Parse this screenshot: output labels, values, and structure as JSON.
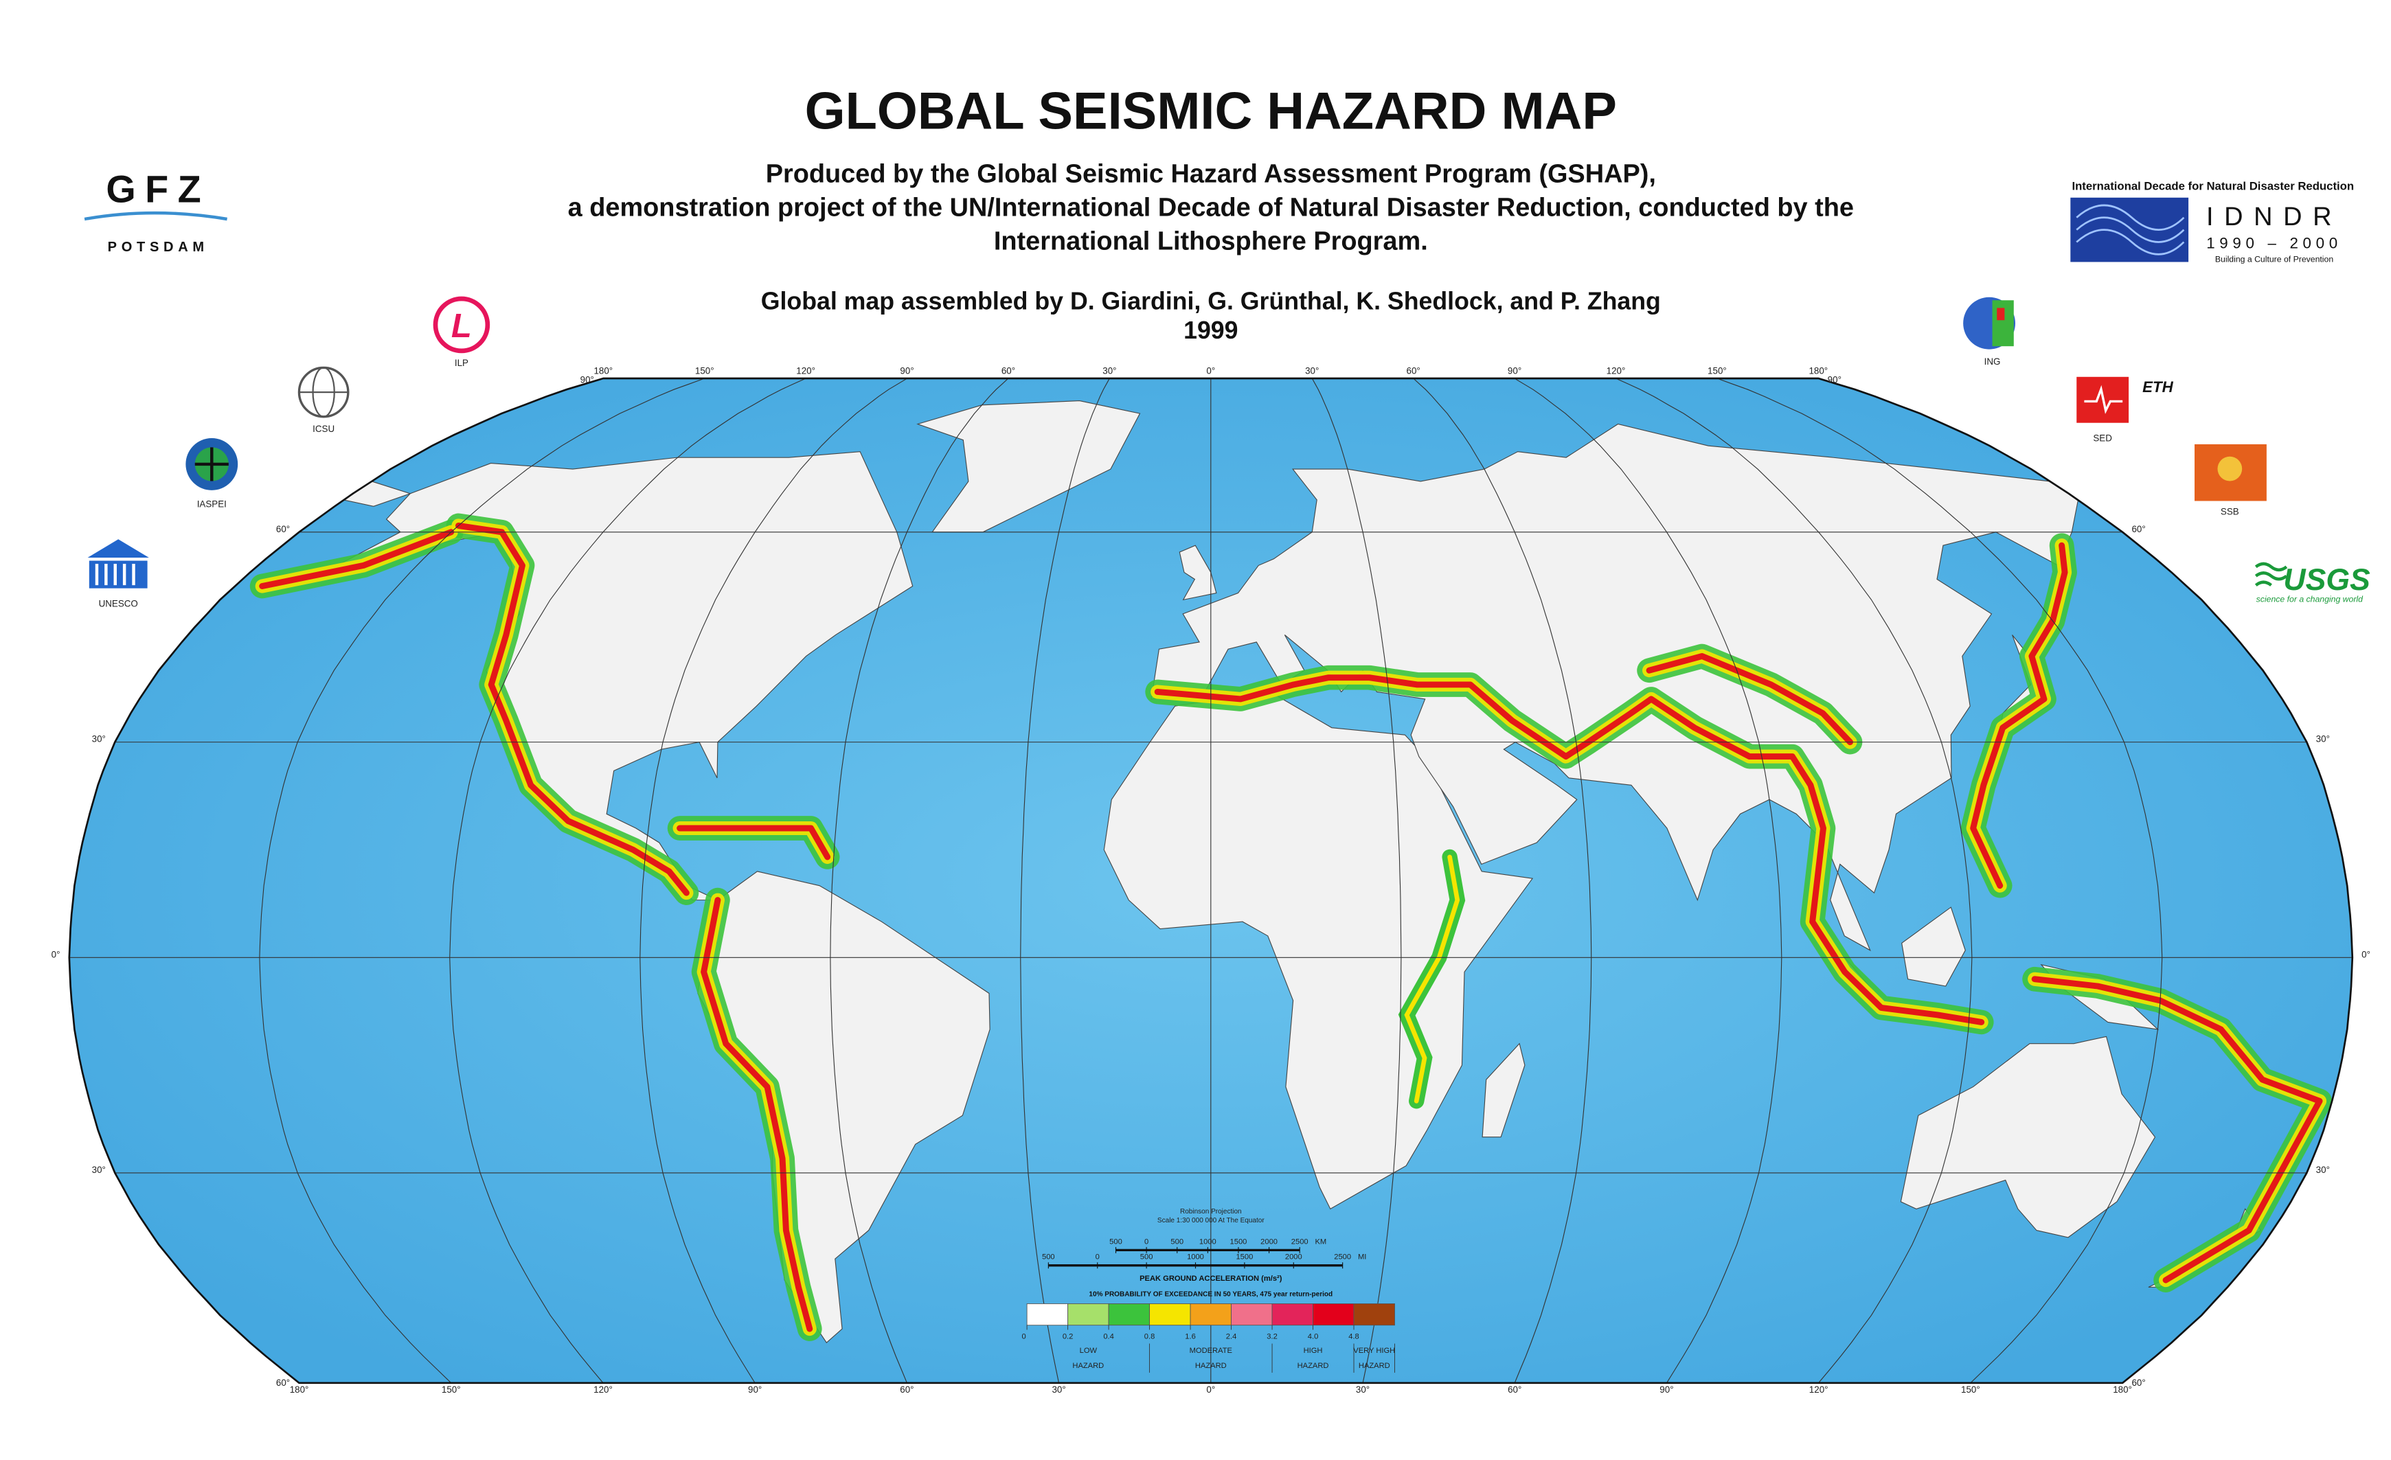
{
  "header": {
    "title": "GLOBAL SEISMIC HAZARD MAP",
    "subtitle_lines": [
      "Produced by the Global Seismic Hazard Assessment Program (GSHAP),",
      "a demonstration project of the UN/International Decade of Natural Disaster Reduction, conducted by the",
      "International Lithosphere Program."
    ],
    "authors": "Global map assembled by D. Giardini, G. Grünthal, K. Shedlock, and  P. Zhang",
    "year": "1999"
  },
  "logos": {
    "gfz": "GFZ",
    "gfz_sub": "POTSDAM",
    "ilp": "ILP",
    "icsu": "ICSU",
    "iaspei": "IASPEI",
    "unesco": "UNESCO",
    "ing": "ING",
    "eth": "ETH",
    "sed": "SED",
    "ssb": "SSB",
    "usgs": "USGS",
    "usgs_tagline": "science for a changing world",
    "idndr_heading": "International Decade for Natural Disaster Reduction",
    "idndr": "IDNDR",
    "idndr_years": "1990 – 2000",
    "idndr_motto": "Building a Culture of Prevention"
  },
  "map": {
    "longitude_labels": [
      "180°",
      "150°",
      "120°",
      "90°",
      "60°",
      "30°",
      "0°",
      "30°",
      "60°",
      "90°",
      "120°",
      "150°",
      "180°"
    ],
    "latitude_labels": [
      "90°",
      "60°",
      "30°",
      "0°",
      "30°",
      "60°"
    ],
    "projection_note": "Robinson Projection",
    "scale_note": "Scale 1:30 000 000 At The Equator",
    "scale_bar": {
      "km": [
        500,
        0,
        500,
        1000,
        1500,
        2000,
        2500
      ],
      "km_unit": "KM",
      "mi": [
        500,
        0,
        500,
        1000,
        1500,
        2000,
        2500
      ],
      "mi_unit": "MI"
    }
  },
  "legend": {
    "title": "PEAK GROUND ACCELERATION (m/s²)",
    "subtitle": "10% PROBABILITY OF EXCEEDANCE IN 50 YEARS, 475 year return-period",
    "colors": [
      "#ffffff",
      "#a6e06a",
      "#3cc33c",
      "#f5e500",
      "#f3a11a",
      "#f0708a",
      "#e3245a",
      "#e3001b",
      "#a0410d"
    ],
    "ticks": [
      0,
      0.2,
      0.4,
      0.8,
      1.6,
      2.4,
      3.2,
      {
        "value": 4,
        "label": "4.0"
      },
      4.8
    ],
    "classes": [
      {
        "label": "LOW",
        "sub": "HAZARD"
      },
      {
        "label": "MODERATE",
        "sub": "HAZARD"
      },
      {
        "label": "HIGH",
        "sub": "HAZARD"
      },
      {
        "label": "VERY  HIGH",
        "sub": "HAZARD"
      }
    ]
  }
}
